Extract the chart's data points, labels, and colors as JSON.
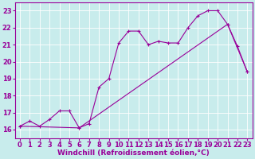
{
  "xlabel": "Windchill (Refroidissement éolien,°C)",
  "bg_color": "#c8ecec",
  "line_color": "#990099",
  "xlim": [
    -0.5,
    23.5
  ],
  "ylim": [
    15.5,
    23.5
  ],
  "xticks": [
    0,
    1,
    2,
    3,
    4,
    5,
    6,
    7,
    8,
    9,
    10,
    11,
    12,
    13,
    14,
    15,
    16,
    17,
    18,
    19,
    20,
    21,
    22,
    23
  ],
  "yticks": [
    16,
    17,
    18,
    19,
    20,
    21,
    22,
    23
  ],
  "curve1_x": [
    0,
    1,
    2,
    3,
    4,
    5,
    6,
    7,
    8,
    9,
    10,
    11,
    12,
    13,
    14,
    15,
    16,
    17,
    18,
    19,
    20,
    21,
    22,
    23
  ],
  "curve1_y": [
    16.2,
    16.5,
    16.2,
    16.6,
    17.1,
    17.1,
    16.1,
    16.35,
    18.5,
    19.0,
    21.1,
    21.8,
    21.8,
    21.0,
    21.2,
    21.1,
    21.1,
    22.0,
    22.7,
    23.0,
    23.0,
    22.2,
    20.9,
    19.4
  ],
  "curve2_x": [
    0,
    6,
    21,
    23
  ],
  "curve2_y": [
    16.2,
    16.1,
    22.2,
    19.4
  ],
  "xlabel_fontsize": 6.5,
  "tick_fontsize": 6
}
